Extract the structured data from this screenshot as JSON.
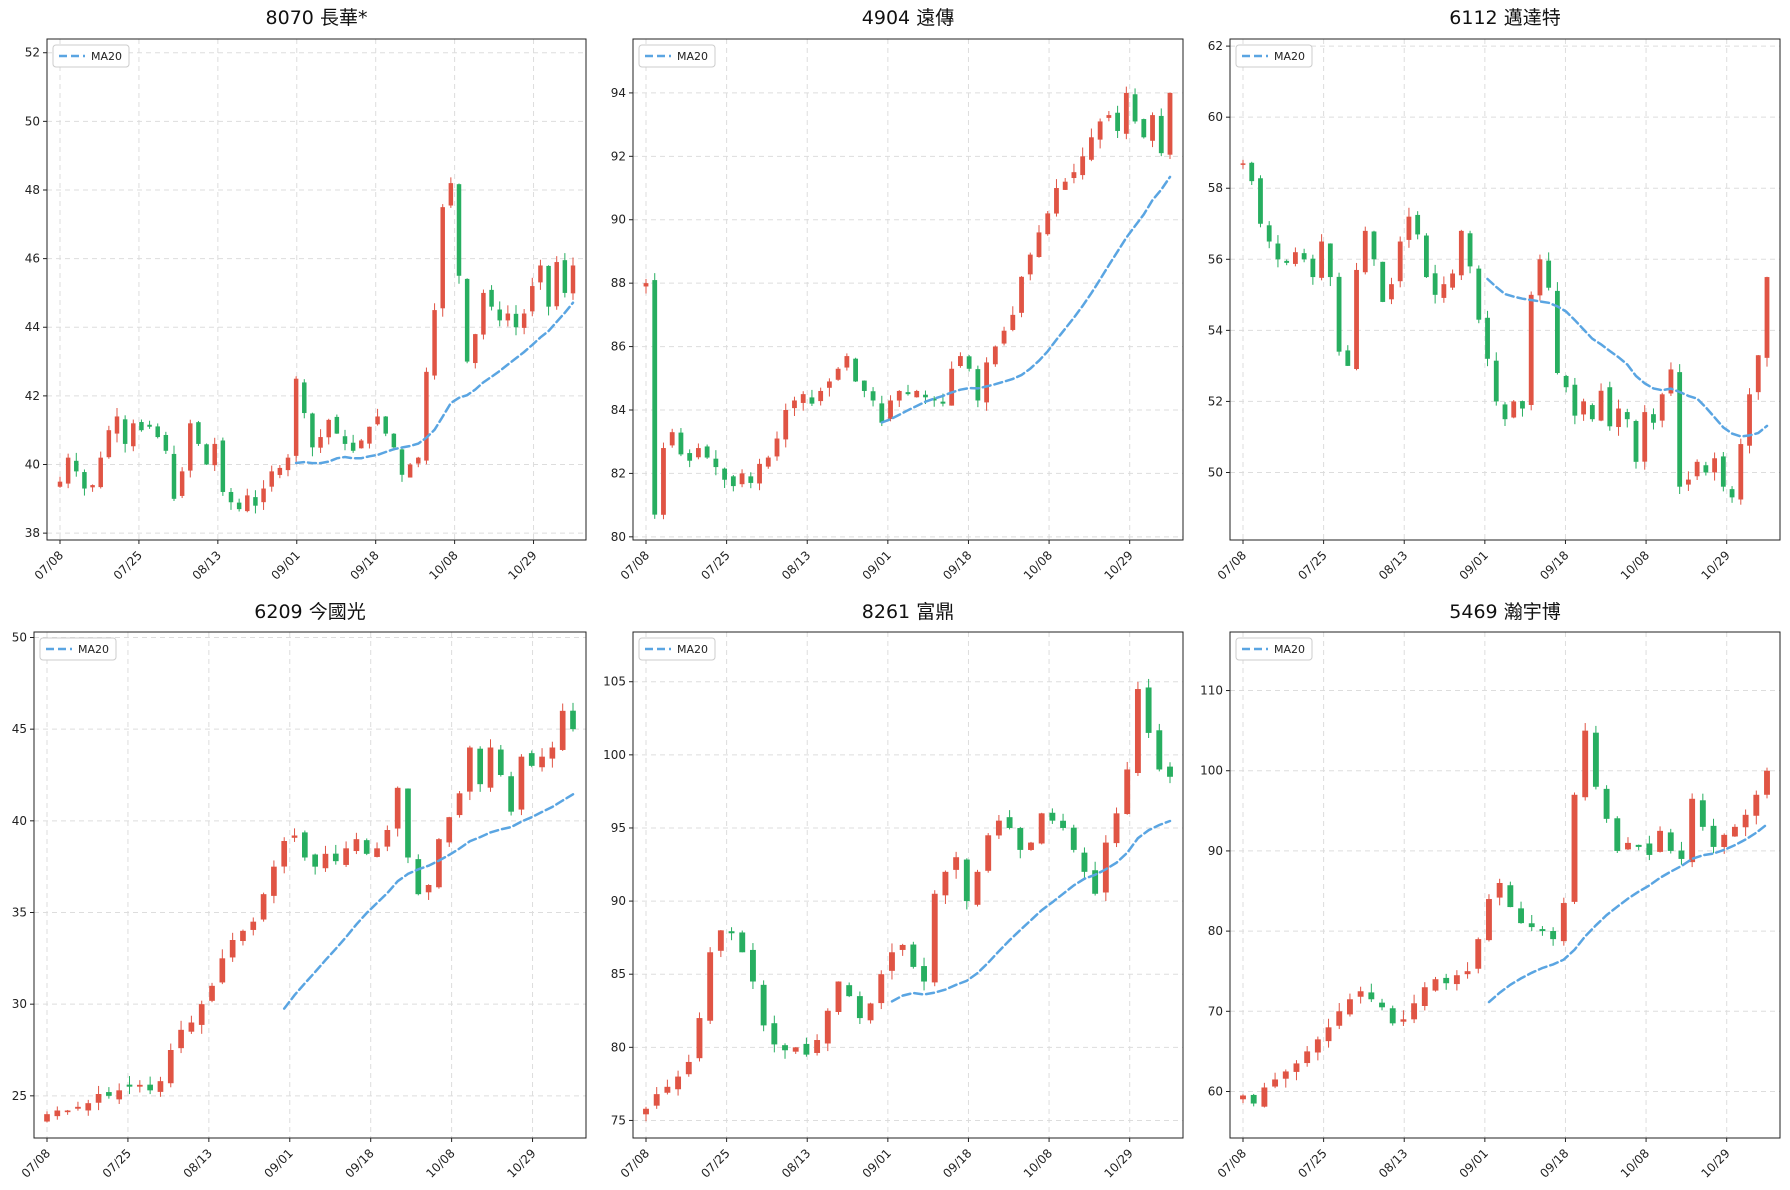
{
  "figure": {
    "legend_label": "MA20",
    "colors": {
      "up": "#e05444",
      "down": "#27ae60",
      "ma20": "#5aa5e2",
      "grid": "#dddddd",
      "axis": "#222222"
    }
  },
  "chart_data": [
    {
      "type": "candlestick",
      "title": "8070 長華*",
      "grid": true,
      "legend": "upper-left",
      "xlabel": "",
      "ylabel": "",
      "ylim": [
        37.8,
        52.4
      ],
      "yticks": [
        38,
        40,
        42,
        44,
        46,
        48,
        50,
        52
      ],
      "xticks": [
        "07/08",
        "07/25",
        "08/13",
        "09/01",
        "09/18",
        "10/08",
        "10/29"
      ],
      "xtick_index": [
        0,
        12,
        24,
        36,
        48,
        60,
        72
      ],
      "ma20_start": 35,
      "closes": [
        39.5,
        40.2,
        39.8,
        39.3,
        39.4,
        40.2,
        41.0,
        41.4,
        40.6,
        41.2,
        41.0,
        41.1,
        40.8,
        40.4,
        39.0,
        39.8,
        41.2,
        40.6,
        40.0,
        40.6,
        39.2,
        38.9,
        38.7,
        39.1,
        38.8,
        39.3,
        39.8,
        39.9,
        40.2,
        42.5,
        41.5,
        40.5,
        40.8,
        41.3,
        40.9,
        40.6,
        40.4,
        40.7,
        41.1,
        41.4,
        40.9,
        40.5,
        39.7,
        40.0,
        40.2,
        42.7,
        44.5,
        47.5,
        48.2,
        45.5,
        43.0,
        43.8,
        45.0,
        44.6,
        44.2,
        44.4,
        44.0,
        44.4,
        45.2,
        45.8,
        44.6,
        45.9,
        45.0,
        45.8
      ]
    },
    {
      "type": "candlestick",
      "title": "4904 遠傳",
      "grid": true,
      "legend": "upper-left",
      "xlabel": "",
      "ylabel": "",
      "ylim": [
        79.9,
        95.7
      ],
      "yticks": [
        80,
        82,
        84,
        86,
        88,
        90,
        92,
        94
      ],
      "xticks": [
        "07/08",
        "07/25",
        "08/13",
        "09/01",
        "09/18",
        "10/08",
        "10/29"
      ],
      "xtick_index": [
        0,
        12,
        24,
        36,
        48,
        60,
        72
      ],
      "ma20_start": 35,
      "closes": [
        88.0,
        80.7,
        82.8,
        83.3,
        82.6,
        82.4,
        82.8,
        82.5,
        82.2,
        81.8,
        81.6,
        82.0,
        81.7,
        82.3,
        82.5,
        83.1,
        84.0,
        84.3,
        84.5,
        84.2,
        84.6,
        84.9,
        85.3,
        85.7,
        84.9,
        84.6,
        84.3,
        83.6,
        84.3,
        84.6,
        84.5,
        84.6,
        84.4,
        84.3,
        84.2,
        85.3,
        85.7,
        85.3,
        84.3,
        85.5,
        86.0,
        86.5,
        87.0,
        88.2,
        88.9,
        89.6,
        90.2,
        91.0,
        91.2,
        91.5,
        92.0,
        92.6,
        93.1,
        93.3,
        92.8,
        94.0,
        93.1,
        92.6,
        93.3,
        92.1,
        94.0
      ]
    },
    {
      "type": "candlestick",
      "title": "6112 邁達特",
      "grid": true,
      "legend": "upper-left",
      "xlabel": "",
      "ylabel": "",
      "ylim": [
        48.1,
        62.2
      ],
      "yticks": [
        50,
        52,
        54,
        56,
        58,
        60,
        62
      ],
      "xticks": [
        "07/08",
        "07/25",
        "08/13",
        "09/01",
        "09/18",
        "10/08",
        "10/29"
      ],
      "xtick_index": [
        0,
        12,
        24,
        36,
        48,
        60,
        72
      ],
      "ma20_start": 36,
      "closes": [
        58.7,
        58.2,
        57.0,
        56.5,
        56.0,
        55.9,
        56.2,
        56.0,
        55.5,
        56.5,
        55.5,
        53.4,
        53.0,
        55.7,
        56.8,
        56.0,
        54.8,
        55.3,
        56.5,
        57.2,
        56.7,
        55.5,
        55.0,
        55.3,
        55.6,
        56.8,
        55.8,
        54.3,
        53.2,
        52.0,
        51.5,
        52.0,
        51.8,
        55.0,
        56.0,
        55.2,
        52.8,
        52.4,
        51.6,
        52.0,
        51.5,
        52.3,
        51.3,
        51.8,
        51.5,
        50.3,
        51.7,
        51.4,
        52.2,
        52.9,
        49.6,
        49.8,
        50.3,
        50.0,
        50.4,
        49.6,
        49.3,
        50.8,
        52.2,
        53.3,
        55.5
      ]
    },
    {
      "type": "candlestick",
      "title": "6209 今國光",
      "grid": true,
      "legend": "upper-left",
      "xlabel": "",
      "ylabel": "",
      "ylim": [
        22.7,
        50.3
      ],
      "yticks": [
        25,
        30,
        35,
        40,
        45,
        50
      ],
      "xticks": [
        "07/08",
        "07/25",
        "08/13",
        "09/01",
        "09/18",
        "10/08",
        "10/29"
      ],
      "xtick_index": [
        0,
        12,
        24,
        36,
        48,
        60,
        72
      ],
      "ma20_start": 35,
      "closes": [
        24.0,
        24.2,
        24.2,
        24.4,
        24.6,
        25.1,
        25.0,
        25.3,
        25.5,
        25.6,
        25.3,
        25.8,
        27.5,
        28.6,
        29.0,
        30.0,
        31.0,
        32.5,
        33.5,
        34.0,
        34.5,
        36.0,
        37.5,
        38.9,
        39.2,
        38.0,
        37.5,
        38.2,
        37.8,
        38.5,
        39.0,
        38.2,
        38.5,
        39.5,
        41.8,
        38.0,
        36.0,
        36.5,
        39.0,
        40.2,
        41.5,
        44.0,
        42.0,
        44.0,
        42.5,
        40.5,
        43.5,
        43.0,
        43.5,
        44.0,
        46.0,
        45.0
      ]
    },
    {
      "type": "candlestick",
      "title": "8261 富鼎",
      "grid": true,
      "legend": "upper-left",
      "xlabel": "",
      "ylabel": "",
      "ylim": [
        73.8,
        108.4
      ],
      "yticks": [
        75,
        80,
        85,
        90,
        95,
        100,
        105
      ],
      "xticks": [
        "07/08",
        "07/25",
        "08/13",
        "09/01",
        "09/18",
        "10/08",
        "10/29"
      ],
      "xtick_index": [
        0,
        12,
        24,
        36,
        48,
        60,
        72
      ],
      "ma20_start": 36,
      "closes": [
        75.8,
        76.8,
        77.3,
        78.0,
        79.0,
        82.0,
        86.5,
        88.0,
        87.8,
        86.5,
        84.5,
        81.5,
        80.2,
        79.8,
        80.0,
        79.5,
        80.5,
        82.5,
        84.5,
        83.5,
        82.0,
        83.0,
        85.0,
        86.5,
        87.0,
        85.5,
        84.5,
        90.5,
        92.0,
        93.0,
        90.0,
        92.0,
        94.5,
        95.5,
        95.0,
        93.5,
        94.0,
        96.0,
        95.5,
        95.0,
        93.5,
        92.0,
        90.5,
        94.0,
        96.0,
        99.0,
        104.5,
        101.5,
        99.0,
        98.5
      ]
    },
    {
      "type": "candlestick",
      "title": "5469 瀚宇博",
      "grid": true,
      "legend": "upper-left",
      "xlabel": "",
      "ylabel": "",
      "ylim": [
        54.2,
        117.3
      ],
      "yticks": [
        60,
        70,
        80,
        90,
        100,
        110
      ],
      "xticks": [
        "07/08",
        "07/25",
        "08/13",
        "09/01",
        "09/18",
        "10/08",
        "10/29"
      ],
      "xtick_index": [
        0,
        12,
        24,
        36,
        48,
        60,
        72
      ],
      "ma20_start": 36,
      "closes": [
        59.5,
        58.5,
        60.5,
        61.5,
        62.5,
        63.5,
        65.0,
        66.5,
        68.0,
        70.0,
        71.5,
        72.5,
        71.5,
        70.5,
        68.5,
        69.0,
        71.0,
        73.0,
        74.0,
        73.5,
        74.5,
        75.0,
        79.0,
        84.0,
        86.0,
        83.0,
        81.0,
        80.5,
        80.0,
        79.0,
        83.5,
        97.0,
        105.0,
        98.0,
        94.0,
        90.0,
        91.0,
        90.5,
        89.5,
        92.5,
        90.0,
        89.0,
        96.5,
        93.0,
        90.5,
        92.0,
        93.0,
        94.5,
        97.0,
        100.0
      ]
    }
  ]
}
